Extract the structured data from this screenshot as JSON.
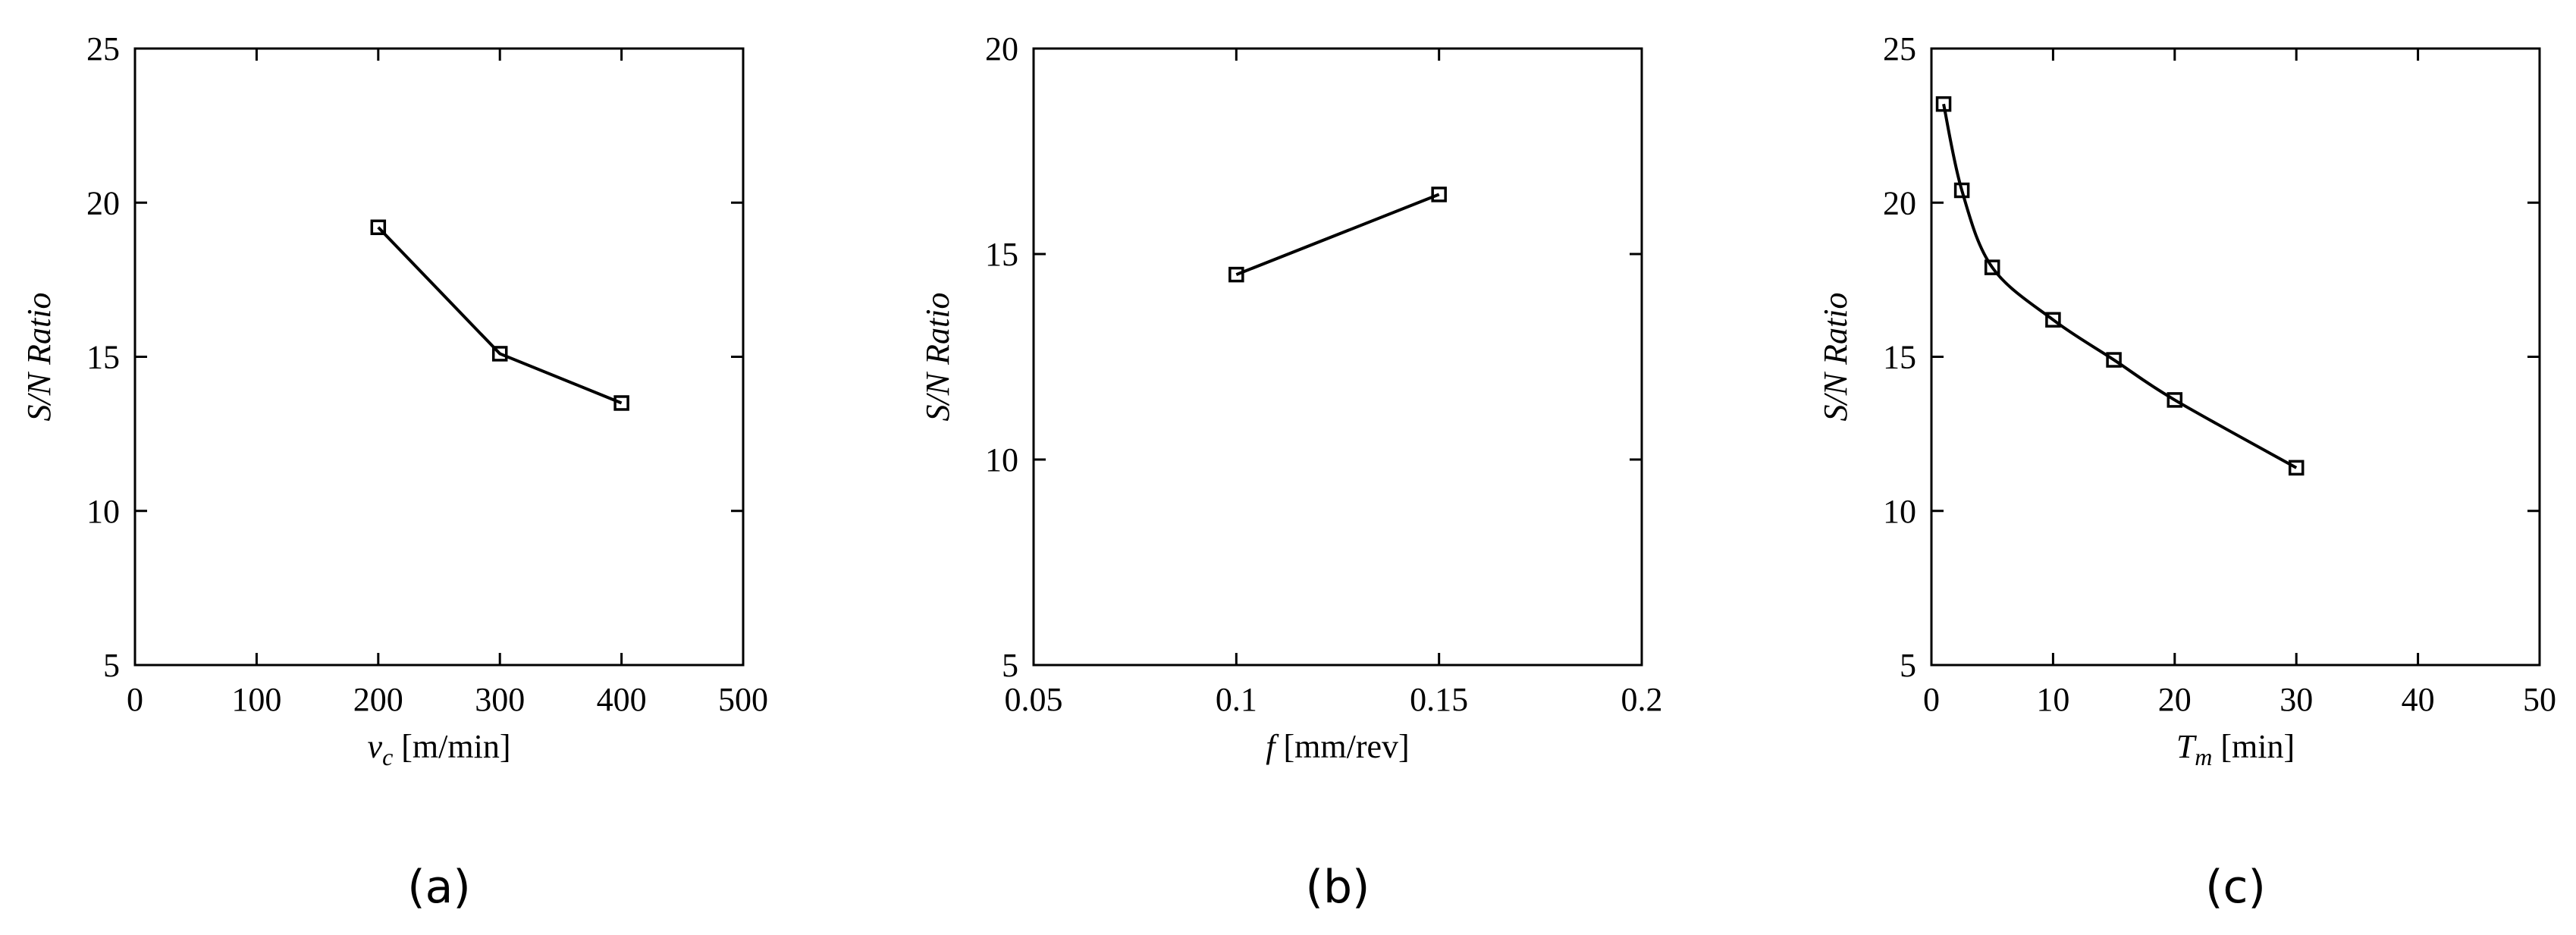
{
  "chart_data": [
    {
      "type": "line",
      "caption": "(a)",
      "xlabel_symbol": "v",
      "xlabel_sub": "c",
      "xlabel_unit": " [m/min]",
      "ylabel": "S/N Ratio",
      "xlim": [
        0,
        500
      ],
      "ylim": [
        5,
        25
      ],
      "xticks": [
        "0",
        "100",
        "200",
        "300",
        "400",
        "500"
      ],
      "yticks": [
        "5",
        "10",
        "15",
        "20",
        "25"
      ],
      "x": [
        200,
        300,
        400
      ],
      "y": [
        19.2,
        15.1,
        13.5
      ]
    },
    {
      "type": "line",
      "caption": "(b)",
      "xlabel_symbol": "f",
      "xlabel_sub": "",
      "xlabel_unit": " [mm/rev]",
      "ylabel": "S/N Ratio",
      "xlim": [
        0.05,
        0.2
      ],
      "ylim": [
        5,
        20
      ],
      "xticks": [
        "0.05",
        "0.1",
        "0.15",
        "0.2"
      ],
      "yticks": [
        "5",
        "10",
        "15",
        "20"
      ],
      "x": [
        0.1,
        0.15
      ],
      "y": [
        14.5,
        16.45
      ]
    },
    {
      "type": "line",
      "caption": "(c)",
      "xlabel_symbol": "T",
      "xlabel_sub": "m",
      "xlabel_unit": " [min]",
      "ylabel": "S/N Ratio",
      "xlim": [
        0,
        50
      ],
      "ylim": [
        5,
        25
      ],
      "xticks": [
        "0",
        "10",
        "20",
        "30",
        "40",
        "50"
      ],
      "yticks": [
        "5",
        "10",
        "15",
        "20",
        "25"
      ],
      "x": [
        1,
        2.5,
        5,
        10,
        15,
        20,
        30
      ],
      "y": [
        23.2,
        20.4,
        17.9,
        16.2,
        14.9,
        13.6,
        11.4
      ]
    }
  ]
}
